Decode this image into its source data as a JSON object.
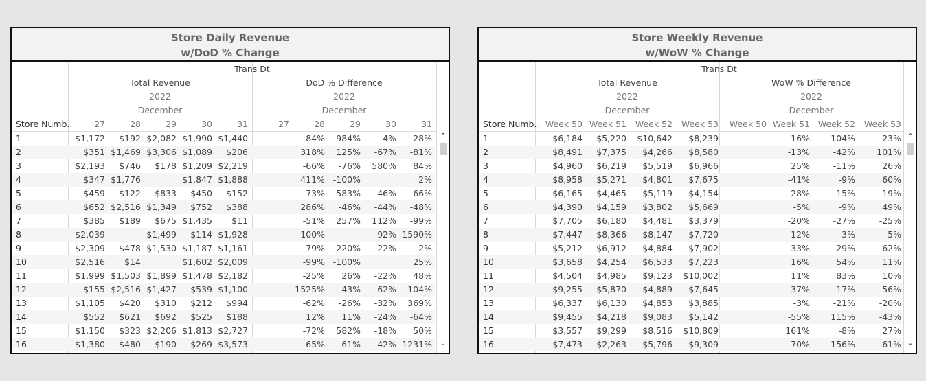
{
  "daily": {
    "title_line1": "Store Daily Revenue",
    "title_line2": "w/DoD % Change",
    "trans_dt": "Trans Dt",
    "group1": "Total Revenue",
    "group2": "DoD % Difference",
    "year": "2022",
    "month": "December",
    "store_header": "Store Numb..",
    "cols": [
      "27",
      "28",
      "29",
      "30",
      "31"
    ],
    "rows": [
      {
        "store": "1",
        "rev": [
          "$1,172",
          "$192",
          "$2,082",
          "$1,990",
          "$1,440"
        ],
        "pct": [
          "",
          "-84%",
          "984%",
          "-4%",
          "-28%"
        ]
      },
      {
        "store": "2",
        "rev": [
          "$351",
          "$1,469",
          "$3,306",
          "$1,089",
          "$206"
        ],
        "pct": [
          "",
          "318%",
          "125%",
          "-67%",
          "-81%"
        ]
      },
      {
        "store": "3",
        "rev": [
          "$2,193",
          "$746",
          "$178",
          "$1,209",
          "$2,219"
        ],
        "pct": [
          "",
          "-66%",
          "-76%",
          "580%",
          "84%"
        ]
      },
      {
        "store": "4",
        "rev": [
          "$347",
          "$1,776",
          "",
          "$1,847",
          "$1,888"
        ],
        "pct": [
          "",
          "411%",
          "-100%",
          "",
          "2%"
        ]
      },
      {
        "store": "5",
        "rev": [
          "$459",
          "$122",
          "$833",
          "$450",
          "$152"
        ],
        "pct": [
          "",
          "-73%",
          "583%",
          "-46%",
          "-66%"
        ]
      },
      {
        "store": "6",
        "rev": [
          "$652",
          "$2,516",
          "$1,349",
          "$752",
          "$388"
        ],
        "pct": [
          "",
          "286%",
          "-46%",
          "-44%",
          "-48%"
        ]
      },
      {
        "store": "7",
        "rev": [
          "$385",
          "$189",
          "$675",
          "$1,435",
          "$11"
        ],
        "pct": [
          "",
          "-51%",
          "257%",
          "112%",
          "-99%"
        ]
      },
      {
        "store": "8",
        "rev": [
          "$2,039",
          "",
          "$1,499",
          "$114",
          "$1,928"
        ],
        "pct": [
          "",
          "-100%",
          "",
          "-92%",
          "1590%"
        ]
      },
      {
        "store": "9",
        "rev": [
          "$2,309",
          "$478",
          "$1,530",
          "$1,187",
          "$1,161"
        ],
        "pct": [
          "",
          "-79%",
          "220%",
          "-22%",
          "-2%"
        ]
      },
      {
        "store": "10",
        "rev": [
          "$2,516",
          "$14",
          "",
          "$1,602",
          "$2,009"
        ],
        "pct": [
          "",
          "-99%",
          "-100%",
          "",
          "25%"
        ]
      },
      {
        "store": "11",
        "rev": [
          "$1,999",
          "$1,503",
          "$1,899",
          "$1,478",
          "$2,182"
        ],
        "pct": [
          "",
          "-25%",
          "26%",
          "-22%",
          "48%"
        ]
      },
      {
        "store": "12",
        "rev": [
          "$155",
          "$2,516",
          "$1,427",
          "$539",
          "$1,100"
        ],
        "pct": [
          "",
          "1525%",
          "-43%",
          "-62%",
          "104%"
        ]
      },
      {
        "store": "13",
        "rev": [
          "$1,105",
          "$420",
          "$310",
          "$212",
          "$994"
        ],
        "pct": [
          "",
          "-62%",
          "-26%",
          "-32%",
          "369%"
        ]
      },
      {
        "store": "14",
        "rev": [
          "$552",
          "$621",
          "$692",
          "$525",
          "$188"
        ],
        "pct": [
          "",
          "12%",
          "11%",
          "-24%",
          "-64%"
        ]
      },
      {
        "store": "15",
        "rev": [
          "$1,150",
          "$323",
          "$2,206",
          "$1,813",
          "$2,727"
        ],
        "pct": [
          "",
          "-72%",
          "582%",
          "-18%",
          "50%"
        ]
      },
      {
        "store": "16",
        "rev": [
          "$1,380",
          "$480",
          "$190",
          "$269",
          "$3,573"
        ],
        "pct": [
          "",
          "-65%",
          "-61%",
          "42%",
          "1231%"
        ]
      }
    ]
  },
  "weekly": {
    "title_line1": "Store Weekly Revenue",
    "title_line2": "w/WoW % Change",
    "trans_dt": "Trans Dt",
    "group1": "Total Revenue",
    "group2": "WoW % Difference",
    "year": "2022",
    "month": "December",
    "store_header": "Store Numb..",
    "cols": [
      "Week 50",
      "Week 51",
      "Week 52",
      "Week 53"
    ],
    "rows": [
      {
        "store": "1",
        "rev": [
          "$6,184",
          "$5,220",
          "$10,642",
          "$8,239"
        ],
        "pct": [
          "",
          "-16%",
          "104%",
          "-23%"
        ]
      },
      {
        "store": "2",
        "rev": [
          "$8,491",
          "$7,375",
          "$4,266",
          "$8,580"
        ],
        "pct": [
          "",
          "-13%",
          "-42%",
          "101%"
        ]
      },
      {
        "store": "3",
        "rev": [
          "$4,960",
          "$6,219",
          "$5,519",
          "$6,966"
        ],
        "pct": [
          "",
          "25%",
          "-11%",
          "26%"
        ]
      },
      {
        "store": "4",
        "rev": [
          "$8,958",
          "$5,271",
          "$4,801",
          "$7,675"
        ],
        "pct": [
          "",
          "-41%",
          "-9%",
          "60%"
        ]
      },
      {
        "store": "5",
        "rev": [
          "$6,165",
          "$4,465",
          "$5,119",
          "$4,154"
        ],
        "pct": [
          "",
          "-28%",
          "15%",
          "-19%"
        ]
      },
      {
        "store": "6",
        "rev": [
          "$4,390",
          "$4,159",
          "$3,802",
          "$5,669"
        ],
        "pct": [
          "",
          "-5%",
          "-9%",
          "49%"
        ]
      },
      {
        "store": "7",
        "rev": [
          "$7,705",
          "$6,180",
          "$4,481",
          "$3,379"
        ],
        "pct": [
          "",
          "-20%",
          "-27%",
          "-25%"
        ]
      },
      {
        "store": "8",
        "rev": [
          "$7,447",
          "$8,366",
          "$8,147",
          "$7,720"
        ],
        "pct": [
          "",
          "12%",
          "-3%",
          "-5%"
        ]
      },
      {
        "store": "9",
        "rev": [
          "$5,212",
          "$6,912",
          "$4,884",
          "$7,902"
        ],
        "pct": [
          "",
          "33%",
          "-29%",
          "62%"
        ]
      },
      {
        "store": "10",
        "rev": [
          "$3,658",
          "$4,254",
          "$6,533",
          "$7,223"
        ],
        "pct": [
          "",
          "16%",
          "54%",
          "11%"
        ]
      },
      {
        "store": "11",
        "rev": [
          "$4,504",
          "$4,985",
          "$9,123",
          "$10,002"
        ],
        "pct": [
          "",
          "11%",
          "83%",
          "10%"
        ]
      },
      {
        "store": "12",
        "rev": [
          "$9,255",
          "$5,870",
          "$4,889",
          "$7,645"
        ],
        "pct": [
          "",
          "-37%",
          "-17%",
          "56%"
        ]
      },
      {
        "store": "13",
        "rev": [
          "$6,337",
          "$6,130",
          "$4,853",
          "$3,885"
        ],
        "pct": [
          "",
          "-3%",
          "-21%",
          "-20%"
        ]
      },
      {
        "store": "14",
        "rev": [
          "$9,455",
          "$4,218",
          "$9,083",
          "$5,142"
        ],
        "pct": [
          "",
          "-55%",
          "115%",
          "-43%"
        ]
      },
      {
        "store": "15",
        "rev": [
          "$3,557",
          "$9,299",
          "$8,516",
          "$10,809"
        ],
        "pct": [
          "",
          "161%",
          "-8%",
          "27%"
        ]
      },
      {
        "store": "16",
        "rev": [
          "$7,473",
          "$2,263",
          "$5,796",
          "$9,309"
        ],
        "pct": [
          "",
          "-70%",
          "156%",
          "61%"
        ]
      }
    ]
  },
  "icons": {
    "scroll_up": "scroll-up-arrow",
    "scroll_down": "scroll-down-arrow"
  }
}
